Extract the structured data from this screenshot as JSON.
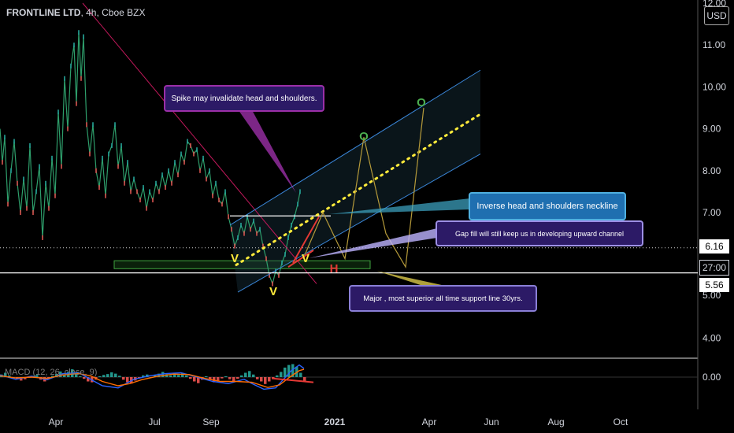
{
  "header": {
    "symbol": "FRONTLINE LTD",
    "interval": "4h",
    "exchange": "Cboe BZX",
    "currency": "USD"
  },
  "indicator": {
    "label": "MACD (12, 26, close, 9)"
  },
  "chart_data": {
    "type": "line",
    "y_scale": "linear",
    "y_ticks": [
      "12.00",
      "11.00",
      "10.00",
      "9.00",
      "8.00",
      "7.00",
      "5.00",
      "4.00"
    ],
    "macd_ticks": [
      "0.00"
    ],
    "x_ticks": [
      "Apr",
      "Jul",
      "Sep",
      "2021",
      "Jun",
      "Apr",
      "Aug",
      "Oct"
    ],
    "price_labels": [
      {
        "text": "6.16",
        "value": 6.16
      },
      {
        "text": "27:00",
        "value": 5.97
      },
      {
        "text": "5.56",
        "value": 5.56
      }
    ],
    "price_series": [
      [
        0,
        9.0
      ],
      [
        3,
        8.2
      ],
      [
        6,
        8.8
      ],
      [
        10,
        7.2
      ],
      [
        14,
        8.0
      ],
      [
        18,
        8.7
      ],
      [
        22,
        7.7
      ],
      [
        26,
        7.0
      ],
      [
        30,
        7.8
      ],
      [
        34,
        7.1
      ],
      [
        38,
        8.6
      ],
      [
        42,
        7.0
      ],
      [
        46,
        7.5
      ],
      [
        50,
        8.1
      ],
      [
        54,
        6.4
      ],
      [
        58,
        7.7
      ],
      [
        62,
        7.1
      ],
      [
        66,
        8.3
      ],
      [
        70,
        7.4
      ],
      [
        74,
        9.4
      ],
      [
        78,
        8.1
      ],
      [
        82,
        10.2
      ],
      [
        86,
        9.0
      ],
      [
        90,
        10.5
      ],
      [
        94,
        11.0
      ],
      [
        97,
        9.6
      ],
      [
        100,
        11.3
      ],
      [
        103,
        10.2
      ],
      [
        106,
        11.2
      ],
      [
        110,
        9.1
      ],
      [
        114,
        8.4
      ],
      [
        118,
        9.1
      ],
      [
        122,
        8.0
      ],
      [
        126,
        7.6
      ],
      [
        130,
        8.3
      ],
      [
        134,
        7.4
      ],
      [
        138,
        8.4
      ],
      [
        142,
        8.6
      ],
      [
        146,
        9.1
      ],
      [
        150,
        8.1
      ],
      [
        154,
        8.6
      ],
      [
        158,
        7.7
      ],
      [
        162,
        8.2
      ],
      [
        166,
        7.5
      ],
      [
        170,
        7.8
      ],
      [
        174,
        7.5
      ],
      [
        178,
        7.3
      ],
      [
        182,
        7.6
      ],
      [
        186,
        7.1
      ],
      [
        190,
        7.5
      ],
      [
        194,
        7.3
      ],
      [
        198,
        7.7
      ],
      [
        202,
        7.5
      ],
      [
        206,
        7.9
      ],
      [
        210,
        7.6
      ],
      [
        214,
        8.0
      ],
      [
        218,
        7.7
      ],
      [
        222,
        8.2
      ],
      [
        226,
        7.9
      ],
      [
        230,
        8.4
      ],
      [
        234,
        8.2
      ],
      [
        238,
        8.7
      ],
      [
        242,
        8.6
      ],
      [
        246,
        8.4
      ],
      [
        250,
        8.5
      ],
      [
        254,
        8.0
      ],
      [
        258,
        8.3
      ],
      [
        262,
        7.8
      ],
      [
        266,
        8.0
      ],
      [
        270,
        7.4
      ],
      [
        274,
        7.7
      ],
      [
        278,
        7.3
      ],
      [
        282,
        7.2
      ],
      [
        286,
        7.5
      ],
      [
        290,
        6.9
      ],
      [
        294,
        6.6
      ],
      [
        298,
        6.2
      ],
      [
        302,
        6.4
      ],
      [
        306,
        6.7
      ],
      [
        310,
        6.5
      ],
      [
        314,
        6.9
      ],
      [
        318,
        6.6
      ],
      [
        322,
        6.8
      ],
      [
        326,
        6.5
      ],
      [
        330,
        6.6
      ],
      [
        334,
        6.2
      ],
      [
        338,
        5.9
      ],
      [
        342,
        5.5
      ],
      [
        346,
        5.3
      ],
      [
        350,
        5.6
      ],
      [
        354,
        5.5
      ],
      [
        358,
        5.8
      ],
      [
        362,
        6.0
      ],
      [
        366,
        6.4
      ],
      [
        370,
        6.7
      ],
      [
        374,
        6.9
      ],
      [
        378,
        7.2
      ],
      [
        381,
        7.5
      ]
    ],
    "lines": [
      {
        "name": "downtrend",
        "color": "#c2185b",
        "x1": 105,
        "y1": 12.0,
        "x2": 402,
        "y2": 5.3
      },
      {
        "name": "channel-upper",
        "color": "#3a86d8",
        "x1": 292,
        "y1": 6.7,
        "x2": 610,
        "y2": 10.4
      },
      {
        "name": "channel-lower",
        "color": "#3a86d8",
        "x1": 302,
        "y1": 5.1,
        "x2": 610,
        "y2": 8.4
      },
      {
        "name": "neckline",
        "color": "#ffffff",
        "x1": 292,
        "y1": 6.92,
        "x2": 420,
        "y2": 6.92
      },
      {
        "name": "support-30yrs",
        "color": "#ffffff",
        "x1": 0,
        "y1": 5.56,
        "x2": 886,
        "y2": 5.56
      }
    ],
    "zone": {
      "x1": 145,
      "x2": 470,
      "y_top": 5.85,
      "y_bottom": 5.66,
      "color": "#1f5c1f"
    },
    "midline": {
      "x1": 300,
      "y1": 5.75,
      "x2": 610,
      "y2": 9.35,
      "color": "#ffeb3b"
    },
    "projection": [
      [
        385,
        5.9
      ],
      [
        410,
        7.0
      ],
      [
        438,
        5.9
      ],
      [
        462,
        8.8
      ],
      [
        490,
        6.5
      ],
      [
        515,
        5.7
      ],
      [
        538,
        9.5
      ]
    ],
    "red_arrows": [
      [
        [
          372,
          5.8
        ],
        [
          405,
          6.9
        ]
      ],
      [
        [
          366,
          5.7
        ],
        [
          398,
          6.1
        ]
      ]
    ],
    "macd": {
      "histogram": [
        [
          0,
          0.06
        ],
        [
          5,
          0.1
        ],
        [
          10,
          0.04
        ],
        [
          15,
          0.0
        ],
        [
          20,
          -0.04
        ],
        [
          25,
          -0.08
        ],
        [
          30,
          -0.05
        ],
        [
          35,
          0.0
        ],
        [
          40,
          0.03
        ],
        [
          45,
          0.05
        ],
        [
          50,
          -0.06
        ],
        [
          55,
          -0.1
        ],
        [
          60,
          -0.04
        ],
        [
          65,
          0.03
        ],
        [
          70,
          0.07
        ],
        [
          75,
          0.13
        ],
        [
          80,
          0.06
        ],
        [
          85,
          0.12
        ],
        [
          90,
          0.18
        ],
        [
          95,
          0.08
        ],
        [
          100,
          0.02
        ],
        [
          105,
          -0.04
        ],
        [
          110,
          -0.1
        ],
        [
          115,
          -0.12
        ],
        [
          120,
          -0.06
        ],
        [
          125,
          0.02
        ],
        [
          130,
          0.05
        ],
        [
          135,
          0.07
        ],
        [
          140,
          0.11
        ],
        [
          145,
          0.08
        ],
        [
          150,
          0.03
        ],
        [
          155,
          -0.06
        ],
        [
          160,
          -0.12
        ],
        [
          165,
          -0.15
        ],
        [
          170,
          -0.08
        ],
        [
          175,
          -0.03
        ],
        [
          180,
          0.04
        ],
        [
          185,
          0.06
        ],
        [
          190,
          0.0
        ],
        [
          195,
          0.05
        ],
        [
          200,
          0.08
        ],
        [
          205,
          0.12
        ],
        [
          210,
          0.07
        ],
        [
          215,
          0.04
        ],
        [
          220,
          0.09
        ],
        [
          225,
          0.05
        ],
        [
          230,
          0.1
        ],
        [
          235,
          0.04
        ],
        [
          240,
          -0.04
        ],
        [
          245,
          -0.1
        ],
        [
          250,
          -0.14
        ],
        [
          255,
          -0.06
        ],
        [
          260,
          0.02
        ],
        [
          265,
          -0.06
        ],
        [
          270,
          -0.12
        ],
        [
          275,
          -0.08
        ],
        [
          280,
          -0.03
        ],
        [
          285,
          0.02
        ],
        [
          290,
          -0.05
        ],
        [
          295,
          -0.1
        ],
        [
          300,
          -0.04
        ],
        [
          305,
          0.04
        ],
        [
          310,
          0.1
        ],
        [
          315,
          0.14
        ],
        [
          320,
          0.06
        ],
        [
          325,
          -0.05
        ],
        [
          330,
          -0.1
        ],
        [
          335,
          -0.16
        ],
        [
          340,
          -0.1
        ],
        [
          345,
          -0.04
        ],
        [
          350,
          0.04
        ],
        [
          355,
          0.12
        ],
        [
          360,
          0.22
        ],
        [
          365,
          0.28
        ],
        [
          370,
          0.3
        ],
        [
          375,
          0.24
        ],
        [
          380,
          0.1
        ],
        [
          385,
          -0.1
        ]
      ],
      "macd_line": [
        [
          0,
          0.05
        ],
        [
          20,
          -0.05
        ],
        [
          40,
          0.02
        ],
        [
          60,
          -0.06
        ],
        [
          80,
          0.08
        ],
        [
          100,
          0.1
        ],
        [
          110,
          0.0
        ],
        [
          130,
          -0.2
        ],
        [
          150,
          -0.25
        ],
        [
          160,
          -0.15
        ],
        [
          170,
          -0.05
        ],
        [
          190,
          0.03
        ],
        [
          210,
          0.08
        ],
        [
          230,
          0.1
        ],
        [
          250,
          0.0
        ],
        [
          270,
          -0.1
        ],
        [
          290,
          -0.15
        ],
        [
          310,
          -0.05
        ],
        [
          320,
          -0.15
        ],
        [
          335,
          -0.28
        ],
        [
          350,
          -0.25
        ],
        [
          360,
          -0.05
        ],
        [
          370,
          0.15
        ],
        [
          380,
          0.28
        ],
        [
          386,
          0.2
        ]
      ],
      "signal_line": [
        [
          0,
          0.03
        ],
        [
          20,
          -0.02
        ],
        [
          40,
          0.0
        ],
        [
          60,
          -0.03
        ],
        [
          80,
          0.05
        ],
        [
          100,
          0.08
        ],
        [
          115,
          0.03
        ],
        [
          130,
          -0.1
        ],
        [
          150,
          -0.2
        ],
        [
          165,
          -0.15
        ],
        [
          180,
          -0.06
        ],
        [
          200,
          0.02
        ],
        [
          220,
          0.07
        ],
        [
          240,
          0.06
        ],
        [
          260,
          -0.03
        ],
        [
          280,
          -0.1
        ],
        [
          300,
          -0.1
        ],
        [
          320,
          -0.12
        ],
        [
          340,
          -0.24
        ],
        [
          355,
          -0.18
        ],
        [
          368,
          0.0
        ],
        [
          380,
          0.15
        ],
        [
          386,
          0.18
        ]
      ],
      "trend": [
        [
          345,
          -0.03
        ],
        [
          398,
          -0.12
        ]
      ]
    },
    "callouts": {
      "spike": "Spike may invalidate head and shoulders.",
      "neckline": "Inverse head and shoulders neckline",
      "gap": "Gap fill will still keep us in developing upward channel",
      "major": "Major , most superior all time support line 30yrs."
    },
    "pattern_marks": {
      "head": "V",
      "left_shoulder": "V",
      "right_shoulder": "V",
      "target1": "O",
      "target2": "O",
      "red_mark": "H"
    }
  }
}
